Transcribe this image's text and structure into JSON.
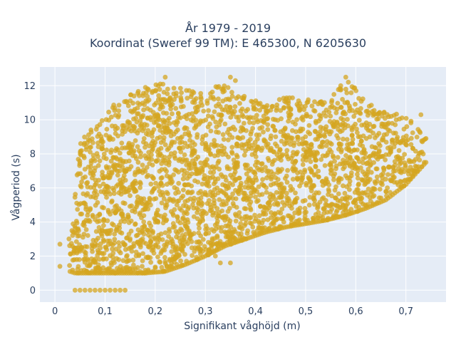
{
  "chart_data": {
    "type": "scatter",
    "title_lines": [
      "År 1979 - 2019",
      "Koordinat (Sweref 99 TM): E 465300, N 6205630"
    ],
    "xlabel": "Signifikant våghöjd (m)",
    "ylabel": "Vågperiod (s)",
    "xlim": [
      -0.03,
      0.78
    ],
    "ylim": [
      -0.7,
      13.1
    ],
    "x_ticks": [
      0,
      0.1,
      0.2,
      0.3,
      0.4,
      0.5,
      0.6,
      0.7
    ],
    "x_tick_labels": [
      "0",
      "0,1",
      "0,2",
      "0,3",
      "0,4",
      "0,5",
      "0,6",
      "0,7"
    ],
    "y_ticks": [
      0,
      2,
      4,
      6,
      8,
      10,
      12
    ],
    "y_tick_labels": [
      "0",
      "2",
      "4",
      "6",
      "8",
      "10",
      "12"
    ],
    "grid": true,
    "legend": "none",
    "colors": {
      "marker": "#d4a520",
      "plot_bg": "#e5ecf6",
      "grid": "#ffffff",
      "text": "#2a3f5f"
    },
    "series": [
      {
        "marker_color": "#d4a520",
        "envelope": [
          {
            "x": 0.03,
            "y_min": 1.1,
            "y_max": 3.2
          },
          {
            "x": 0.04,
            "y_min": 1.0,
            "y_max": 6.5
          },
          {
            "x": 0.05,
            "y_min": 1.0,
            "y_max": 8.8
          },
          {
            "x": 0.07,
            "y_min": 1.0,
            "y_max": 9.5
          },
          {
            "x": 0.1,
            "y_min": 1.0,
            "y_max": 10.5
          },
          {
            "x": 0.14,
            "y_min": 1.0,
            "y_max": 11.5
          },
          {
            "x": 0.18,
            "y_min": 1.0,
            "y_max": 12.0
          },
          {
            "x": 0.22,
            "y_min": 1.1,
            "y_max": 12.4
          },
          {
            "x": 0.26,
            "y_min": 1.5,
            "y_max": 11.8
          },
          {
            "x": 0.3,
            "y_min": 2.0,
            "y_max": 11.6
          },
          {
            "x": 0.34,
            "y_min": 2.6,
            "y_max": 12.3
          },
          {
            "x": 0.38,
            "y_min": 3.0,
            "y_max": 11.3
          },
          {
            "x": 0.42,
            "y_min": 3.4,
            "y_max": 11.0
          },
          {
            "x": 0.46,
            "y_min": 3.7,
            "y_max": 11.3
          },
          {
            "x": 0.5,
            "y_min": 3.9,
            "y_max": 11.3
          },
          {
            "x": 0.54,
            "y_min": 4.1,
            "y_max": 11.0
          },
          {
            "x": 0.58,
            "y_min": 4.4,
            "y_max": 12.5
          },
          {
            "x": 0.62,
            "y_min": 4.8,
            "y_max": 11.2
          },
          {
            "x": 0.66,
            "y_min": 5.3,
            "y_max": 10.5
          },
          {
            "x": 0.7,
            "y_min": 6.2,
            "y_max": 10.3
          },
          {
            "x": 0.74,
            "y_min": 7.5,
            "y_max": 9.0
          }
        ],
        "points": [
          {
            "x": 0.04,
            "y": 0
          },
          {
            "x": 0.05,
            "y": 0
          },
          {
            "x": 0.06,
            "y": 0
          },
          {
            "x": 0.07,
            "y": 0
          },
          {
            "x": 0.08,
            "y": 0
          },
          {
            "x": 0.09,
            "y": 0
          },
          {
            "x": 0.1,
            "y": 0
          },
          {
            "x": 0.11,
            "y": 0
          },
          {
            "x": 0.12,
            "y": 0
          },
          {
            "x": 0.13,
            "y": 0
          },
          {
            "x": 0.14,
            "y": 0
          },
          {
            "x": 0.01,
            "y": 1.4
          },
          {
            "x": 0.01,
            "y": 2.7
          },
          {
            "x": 0.21,
            "y": 12.1
          },
          {
            "x": 0.22,
            "y": 12.5
          },
          {
            "x": 0.35,
            "y": 12.5
          },
          {
            "x": 0.36,
            "y": 12.3
          },
          {
            "x": 0.58,
            "y": 12.5
          },
          {
            "x": 0.57,
            "y": 12.0
          },
          {
            "x": 0.73,
            "y": 10.3
          },
          {
            "x": 0.74,
            "y": 8.9
          },
          {
            "x": 0.74,
            "y": 7.5
          },
          {
            "x": 0.33,
            "y": 1.6
          },
          {
            "x": 0.35,
            "y": 1.6
          },
          {
            "x": 0.32,
            "y": 2.0
          }
        ]
      }
    ]
  }
}
